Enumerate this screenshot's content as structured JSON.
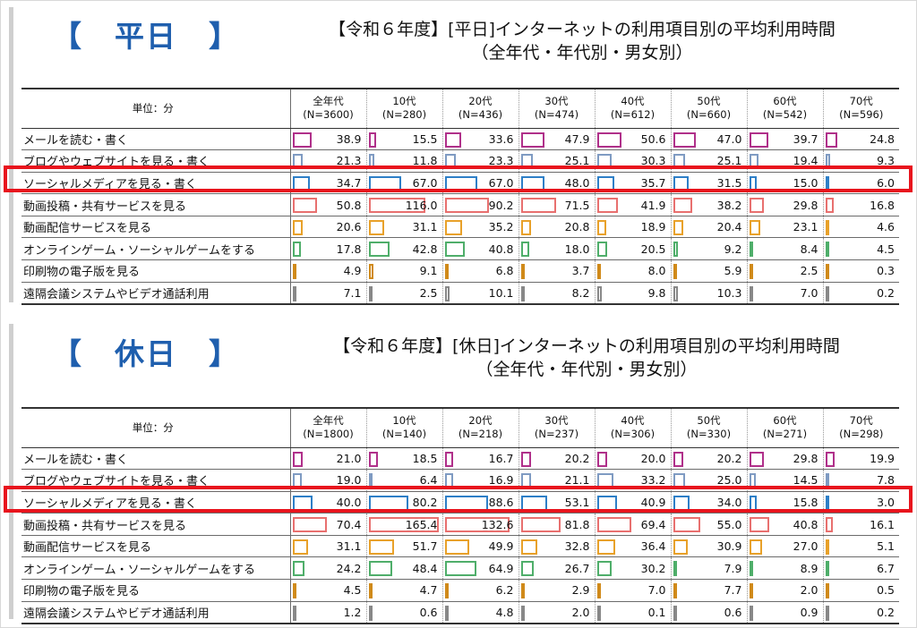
{
  "chart_data": [
    {
      "type": "table",
      "section_label": "【　平日　】",
      "title": "【令和６年度】[平日]インターネットの利用項目別の平均利用時間",
      "subtitle": "（全年代・年代別・男女別）",
      "unit_label": "単位：分",
      "highlighted_row": "ソーシャルメディアを見る・書く",
      "columns": [
        {
          "name": "全年代",
          "n": "(N=3600)"
        },
        {
          "name": "10代",
          "n": "(N=280)"
        },
        {
          "name": "20代",
          "n": "(N=436)"
        },
        {
          "name": "30代",
          "n": "(N=474)"
        },
        {
          "name": "40代",
          "n": "(N=612)"
        },
        {
          "name": "50代",
          "n": "(N=660)"
        },
        {
          "name": "60代",
          "n": "(N=542)"
        },
        {
          "name": "70代",
          "n": "(N=596)"
        }
      ],
      "rows": [
        {
          "label": "メールを読む・書く",
          "color": "#b0308a",
          "values": [
            "38.9",
            "15.5",
            "33.6",
            "47.9",
            "50.6",
            "47.0",
            "39.7",
            "24.8"
          ]
        },
        {
          "label": "ブログやウェブサイトを見る・書く",
          "color": "#7f9bc2",
          "values": [
            "21.3",
            "11.8",
            "23.3",
            "25.1",
            "30.3",
            "25.1",
            "19.4",
            "9.3"
          ]
        },
        {
          "label": "ソーシャルメディアを見る・書く",
          "color": "#2e7fc7",
          "values": [
            "34.7",
            "67.0",
            "67.0",
            "48.0",
            "35.7",
            "31.5",
            "15.0",
            "6.0"
          ]
        },
        {
          "label": "動画投稿・共有サービスを見る",
          "color": "#e8706f",
          "values": [
            "50.8",
            "116.0",
            "90.2",
            "71.5",
            "41.9",
            "38.2",
            "29.8",
            "16.8"
          ]
        },
        {
          "label": "動画配信サービスを見る",
          "color": "#e8a12a",
          "values": [
            "20.6",
            "31.1",
            "35.2",
            "20.8",
            "18.9",
            "20.4",
            "23.1",
            "4.6"
          ]
        },
        {
          "label": "オンラインゲーム・ソーシャルゲームをする",
          "color": "#4fae6a",
          "values": [
            "17.8",
            "42.8",
            "40.8",
            "18.0",
            "20.5",
            "9.2",
            "8.4",
            "4.5"
          ]
        },
        {
          "label": "印刷物の電子版を見る",
          "color": "#d08a1a",
          "values": [
            "4.9",
            "9.1",
            "6.8",
            "3.7",
            "8.0",
            "5.9",
            "2.5",
            "0.3"
          ]
        },
        {
          "label": "遠隔会議システムやビデオ通話利用",
          "color": "#888888",
          "values": [
            "7.1",
            "2.5",
            "10.1",
            "8.2",
            "9.8",
            "10.3",
            "7.0",
            "0.2"
          ]
        }
      ]
    },
    {
      "type": "table",
      "section_label": "【　休日　】",
      "title": "【令和６年度】[休日]インターネットの利用項目別の平均利用時間",
      "subtitle": "（全年代・年代別・男女別）",
      "unit_label": "単位：分",
      "highlighted_row": "ソーシャルメディアを見る・書く",
      "columns": [
        {
          "name": "全年代",
          "n": "(N=1800)"
        },
        {
          "name": "10代",
          "n": "(N=140)"
        },
        {
          "name": "20代",
          "n": "(N=218)"
        },
        {
          "name": "30代",
          "n": "(N=237)"
        },
        {
          "name": "40代",
          "n": "(N=306)"
        },
        {
          "name": "50代",
          "n": "(N=330)"
        },
        {
          "name": "60代",
          "n": "(N=271)"
        },
        {
          "name": "70代",
          "n": "(N=298)"
        }
      ],
      "rows": [
        {
          "label": "メールを読む・書く",
          "color": "#b0308a",
          "values": [
            "21.0",
            "18.5",
            "16.7",
            "20.2",
            "20.0",
            "20.2",
            "29.8",
            "19.9"
          ]
        },
        {
          "label": "ブログやウェブサイトを見る・書く",
          "color": "#7f9bc2",
          "values": [
            "19.0",
            "6.4",
            "16.9",
            "21.1",
            "33.2",
            "25.0",
            "14.5",
            "7.8"
          ]
        },
        {
          "label": "ソーシャルメディアを見る・書く",
          "color": "#2e7fc7",
          "values": [
            "40.0",
            "80.2",
            "88.6",
            "53.1",
            "40.9",
            "34.0",
            "15.8",
            "3.0"
          ]
        },
        {
          "label": "動画投稿・共有サービスを見る",
          "color": "#e8706f",
          "values": [
            "70.4",
            "165.4",
            "132.6",
            "81.8",
            "69.4",
            "55.0",
            "40.8",
            "16.1"
          ]
        },
        {
          "label": "動画配信サービスを見る",
          "color": "#e8a12a",
          "values": [
            "31.1",
            "51.7",
            "49.9",
            "32.8",
            "36.4",
            "30.9",
            "27.0",
            "5.1"
          ]
        },
        {
          "label": "オンラインゲーム・ソーシャルゲームをする",
          "color": "#4fae6a",
          "values": [
            "24.2",
            "48.4",
            "64.9",
            "26.7",
            "30.2",
            "7.9",
            "8.9",
            "6.7"
          ]
        },
        {
          "label": "印刷物の電子版を見る",
          "color": "#d08a1a",
          "values": [
            "4.5",
            "4.7",
            "6.2",
            "2.9",
            "7.0",
            "7.7",
            "2.0",
            "0.5"
          ]
        },
        {
          "label": "遠隔会議システムやビデオ通話利用",
          "color": "#888888",
          "values": [
            "1.2",
            "0.6",
            "4.8",
            "2.0",
            "0.1",
            "0.6",
            "0.9",
            "0.2"
          ]
        }
      ]
    }
  ]
}
